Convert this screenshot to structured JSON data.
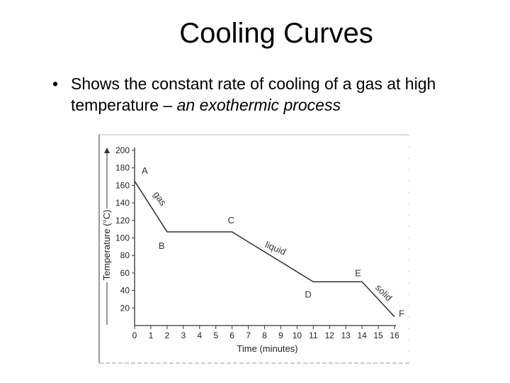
{
  "slide": {
    "title": "Cooling Curves",
    "bullet": "•",
    "text_plain": "Shows the constant rate of cooling of a gas at high temperature – ",
    "text_italic": "an exothermic process"
  },
  "chart_data": {
    "type": "line",
    "xlabel": "Time (minutes)",
    "ylabel": "Temperature (°C)",
    "xlim": [
      0,
      16
    ],
    "ylim": [
      0,
      200
    ],
    "x_ticks": [
      0,
      1,
      2,
      3,
      4,
      5,
      6,
      7,
      8,
      9,
      10,
      11,
      12,
      13,
      14,
      15,
      16
    ],
    "y_ticks": [
      20,
      40,
      60,
      80,
      100,
      120,
      140,
      160,
      180,
      200
    ],
    "grid": false,
    "series": [
      {
        "x": [
          0,
          2,
          6,
          11,
          14,
          16
        ],
        "y": [
          165,
          107,
          107,
          50,
          50,
          10
        ]
      }
    ],
    "point_labels": [
      {
        "text": "A",
        "x": 0,
        "y": 165
      },
      {
        "text": "B",
        "x": 2,
        "y": 107
      },
      {
        "text": "C",
        "x": 6,
        "y": 107
      },
      {
        "text": "D",
        "x": 11,
        "y": 50
      },
      {
        "text": "E",
        "x": 14,
        "y": 50
      },
      {
        "text": "F",
        "x": 16,
        "y": 10
      }
    ],
    "segment_labels": [
      {
        "text": "gas",
        "x": 1.4,
        "y": 143
      },
      {
        "text": "liquid",
        "x": 8.6,
        "y": 85
      },
      {
        "text": "solid",
        "x": 15.2,
        "y": 35
      }
    ]
  }
}
